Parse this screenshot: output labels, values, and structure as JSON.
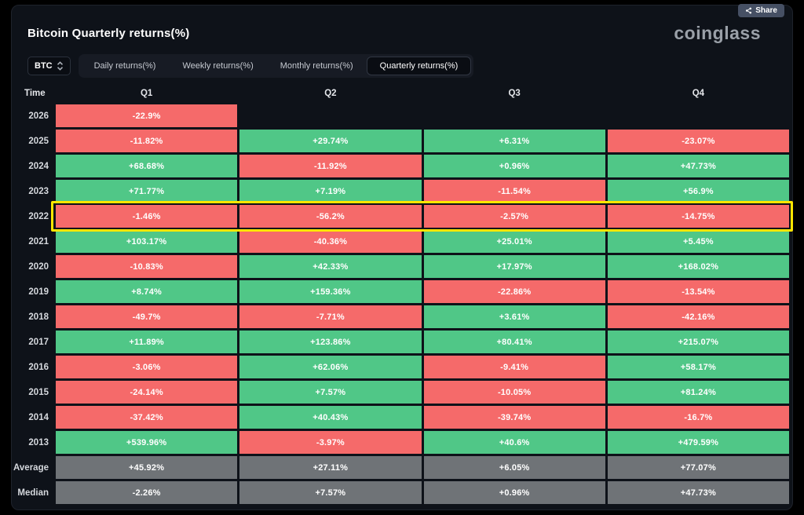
{
  "colors": {
    "positive": "#50c787",
    "negative": "#f56a6a",
    "neutral": "#6f7377",
    "highlight": "#ffe600",
    "panel_bg": "#0e1219"
  },
  "share": {
    "label": "Share"
  },
  "header": {
    "title": "Bitcoin Quarterly returns(%)",
    "brand": "coinglass"
  },
  "controls": {
    "symbol_select": {
      "value": "BTC"
    },
    "tabs": [
      {
        "label": "Daily returns(%)",
        "active": false
      },
      {
        "label": "Weekly returns(%)",
        "active": false
      },
      {
        "label": "Monthly returns(%)",
        "active": false
      },
      {
        "label": "Quarterly returns(%)",
        "active": true
      }
    ]
  },
  "table": {
    "columns": [
      "Time",
      "Q1",
      "Q2",
      "Q3",
      "Q4"
    ],
    "rows": [
      {
        "label": "2026",
        "kind": "year",
        "highlight": false,
        "cells": [
          "-22.9%",
          "",
          "",
          ""
        ]
      },
      {
        "label": "2025",
        "kind": "year",
        "highlight": false,
        "cells": [
          "-11.82%",
          "+29.74%",
          "+6.31%",
          "-23.07%"
        ]
      },
      {
        "label": "2024",
        "kind": "year",
        "highlight": false,
        "cells": [
          "+68.68%",
          "-11.92%",
          "+0.96%",
          "+47.73%"
        ]
      },
      {
        "label": "2023",
        "kind": "year",
        "highlight": false,
        "cells": [
          "+71.77%",
          "+7.19%",
          "-11.54%",
          "+56.9%"
        ]
      },
      {
        "label": "2022",
        "kind": "year",
        "highlight": true,
        "cells": [
          "-1.46%",
          "-56.2%",
          "-2.57%",
          "-14.75%"
        ]
      },
      {
        "label": "2021",
        "kind": "year",
        "highlight": false,
        "cells": [
          "+103.17%",
          "-40.36%",
          "+25.01%",
          "+5.45%"
        ]
      },
      {
        "label": "2020",
        "kind": "year",
        "highlight": false,
        "cells": [
          "-10.83%",
          "+42.33%",
          "+17.97%",
          "+168.02%"
        ]
      },
      {
        "label": "2019",
        "kind": "year",
        "highlight": false,
        "cells": [
          "+8.74%",
          "+159.36%",
          "-22.86%",
          "-13.54%"
        ]
      },
      {
        "label": "2018",
        "kind": "year",
        "highlight": false,
        "cells": [
          "-49.7%",
          "-7.71%",
          "+3.61%",
          "-42.16%"
        ]
      },
      {
        "label": "2017",
        "kind": "year",
        "highlight": false,
        "cells": [
          "+11.89%",
          "+123.86%",
          "+80.41%",
          "+215.07%"
        ]
      },
      {
        "label": "2016",
        "kind": "year",
        "highlight": false,
        "cells": [
          "-3.06%",
          "+62.06%",
          "-9.41%",
          "+58.17%"
        ]
      },
      {
        "label": "2015",
        "kind": "year",
        "highlight": false,
        "cells": [
          "-24.14%",
          "+7.57%",
          "-10.05%",
          "+81.24%"
        ]
      },
      {
        "label": "2014",
        "kind": "year",
        "highlight": false,
        "cells": [
          "-37.42%",
          "+40.43%",
          "-39.74%",
          "-16.7%"
        ]
      },
      {
        "label": "2013",
        "kind": "year",
        "highlight": false,
        "cells": [
          "+539.96%",
          "-3.97%",
          "+40.6%",
          "+479.59%"
        ]
      },
      {
        "label": "Average",
        "kind": "summary",
        "highlight": false,
        "cells": [
          "+45.92%",
          "+27.11%",
          "+6.05%",
          "+77.07%"
        ]
      },
      {
        "label": "Median",
        "kind": "summary",
        "highlight": false,
        "cells": [
          "-2.26%",
          "+7.57%",
          "+0.96%",
          "+47.73%"
        ]
      }
    ]
  }
}
